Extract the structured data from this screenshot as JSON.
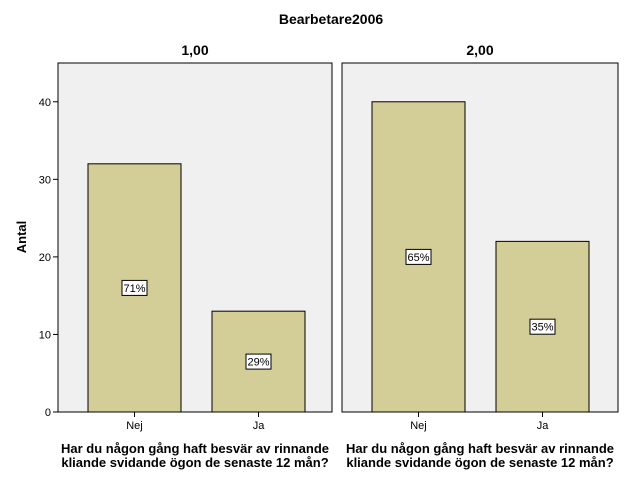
{
  "chart_data": {
    "type": "bar",
    "title": "Bearbetare2006",
    "ylabel": "Antal",
    "xlabel": "Har du någon gång haft besvär av rinnande kliande svidande ögon de senaste 12 mån?",
    "categories": [
      "Nej",
      "Ja"
    ],
    "ylim": [
      0,
      45
    ],
    "yticks": [
      0,
      10,
      20,
      30,
      40
    ],
    "grid": false,
    "bar_color": "#d3ce97",
    "panel_color": "#f0f0f0",
    "panels": [
      {
        "label": "1,00",
        "values": [
          32,
          13
        ],
        "labels": [
          "71%",
          "29%"
        ]
      },
      {
        "label": "2,00",
        "values": [
          40,
          22
        ],
        "labels": [
          "65%",
          "35%"
        ]
      }
    ]
  }
}
